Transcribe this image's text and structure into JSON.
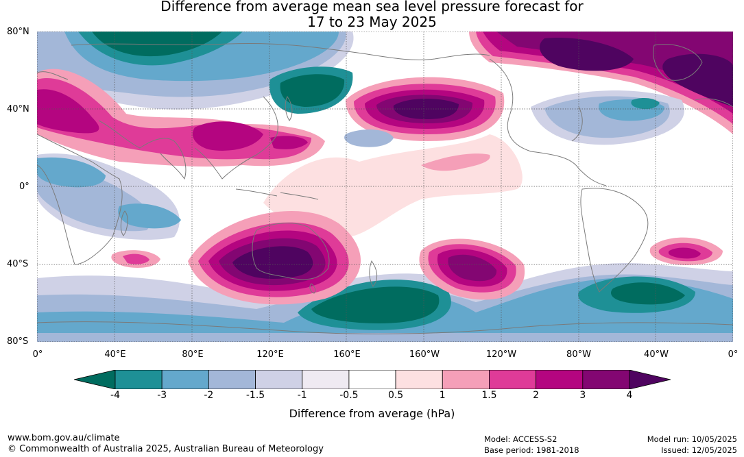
{
  "title_line1": "Difference from average mean sea level pressure forecast for",
  "title_line2": "17 to 23 May 2025",
  "lat_labels": [
    "80°N",
    "40°N",
    "0°",
    "40°S",
    "80°S"
  ],
  "lon_labels": [
    "0°",
    "40°E",
    "80°E",
    "120°E",
    "160°E",
    "160°W",
    "120°W",
    "80°W",
    "40°W",
    "0°"
  ],
  "colorbar": {
    "ticks": [
      "-4",
      "-3",
      "-2",
      "-1.5",
      "-1",
      "-0.5",
      "0.5",
      "1",
      "1.5",
      "2",
      "3",
      "4"
    ],
    "colors": [
      "#006c5f",
      "#1e9096",
      "#64a8cc",
      "#a3b7d8",
      "#cfd1e6",
      "#efeaf2",
      "#ffffff",
      "#fde0e1",
      "#f59fb8",
      "#df3b98",
      "#b40580",
      "#830672",
      "#4f0460"
    ],
    "label": "Difference from average (hPa)"
  },
  "footer": {
    "website": "www.bom.gov.au/climate",
    "copyright": "© Commonwealth of Australia 2025, Australian Bureau of Meteorology",
    "model": "Model: ACCESS-S2",
    "base_period": "Base period: 1981-2018",
    "model_run": "Model run: 10/05/2025",
    "issued": "Issued: 12/05/2025"
  }
}
